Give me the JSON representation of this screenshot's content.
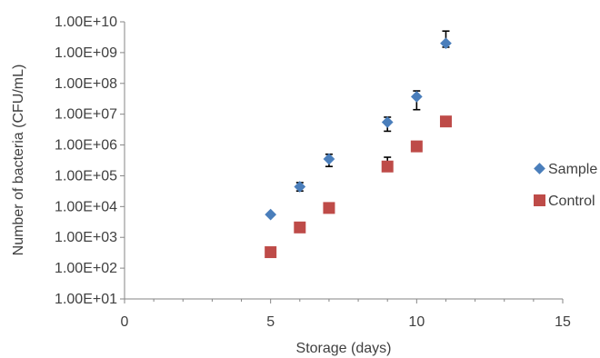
{
  "chart_data": {
    "type": "scatter",
    "title": "",
    "xlabel": "Storage (days)",
    "ylabel": "Number of bacteria (CFU/mL)",
    "xlim": [
      0,
      15
    ],
    "x_major_ticks": [
      0,
      5,
      10,
      15
    ],
    "x_minor_step": 1,
    "ylim": [
      10,
      10000000000
    ],
    "y_scale": "log",
    "y_ticks": [
      {
        "value": 10,
        "label": "1.00E+01"
      },
      {
        "value": 100,
        "label": "1.00E+02"
      },
      {
        "value": 1000,
        "label": "1.00E+03"
      },
      {
        "value": 10000,
        "label": "1.00E+04"
      },
      {
        "value": 100000,
        "label": "1.00E+05"
      },
      {
        "value": 1000000,
        "label": "1.00E+06"
      },
      {
        "value": 10000000,
        "label": "1.00E+07"
      },
      {
        "value": 100000000,
        "label": "1.00E+08"
      },
      {
        "value": 1000000000,
        "label": "1.00E+09"
      },
      {
        "value": 10000000000,
        "label": "1.00E+10"
      }
    ],
    "grid": false,
    "legend_position": "right",
    "series": [
      {
        "name": "Sample",
        "marker": "diamond",
        "color": "#4A7EBB",
        "points": [
          {
            "x": 5,
            "y": 5500
          },
          {
            "x": 6,
            "y": 44000,
            "err_low": 32000,
            "err_high": 60000
          },
          {
            "x": 7,
            "y": 350000,
            "err_low": 200000,
            "err_high": 500000
          },
          {
            "x": 9,
            "y": 5500000,
            "err_low": 2800000,
            "err_high": 8000000
          },
          {
            "x": 10,
            "y": 37000000,
            "err_low": 14000000,
            "err_high": 57000000
          },
          {
            "x": 11,
            "y": 2000000000,
            "err_low": 1500000000,
            "err_high": 5000000000
          }
        ]
      },
      {
        "name": "Control",
        "marker": "square",
        "color": "#BE4B48",
        "points": [
          {
            "x": 5,
            "y": 330
          },
          {
            "x": 6,
            "y": 2100,
            "err_low": 1700,
            "err_high": 2400
          },
          {
            "x": 7,
            "y": 9000
          },
          {
            "x": 9,
            "y": 200000,
            "err_low": 180000,
            "err_high": 400000
          },
          {
            "x": 10,
            "y": 900000
          },
          {
            "x": 11,
            "y": 5800000,
            "err_low": 4000000,
            "err_high": 6500000
          }
        ]
      }
    ]
  }
}
